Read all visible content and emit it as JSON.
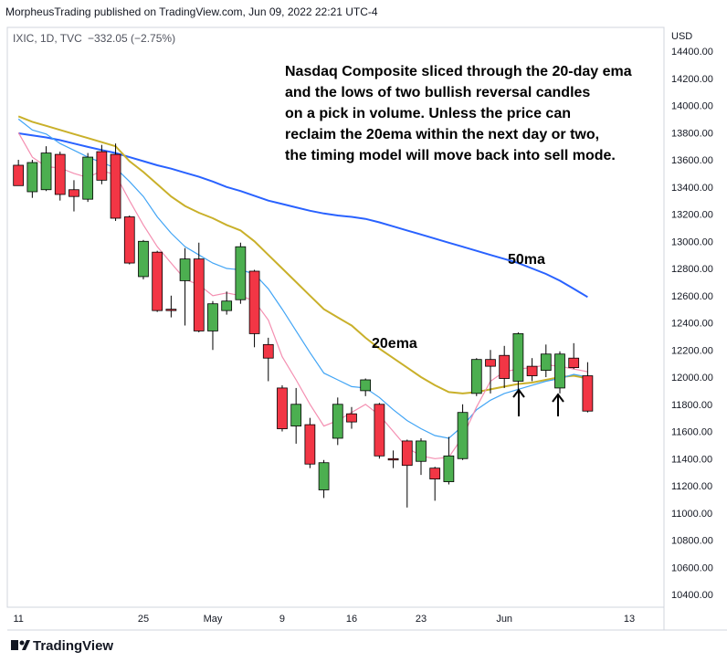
{
  "chart_data": {
    "type": "candlestick",
    "header": "MorpheusTrading published on TradingView.com, Jun 09, 2022 22:21 UTC-4",
    "symbol": "IXIC, 1D, TVC",
    "change": "−332.05 (−2.75%)",
    "currency": "USD",
    "footer": "TradingView",
    "note": [
      "Nasdaq Composite sliced through the 20-day ema",
      "and the lows of two bullish reversal candles",
      "on a pick in volume.  Unless the price can",
      "reclaim the 20ema within the next day or two,",
      "the timing model will move back into sell mode."
    ],
    "annotations": [
      "50ma",
      "20ema"
    ],
    "up_color": "#4caf50",
    "down_color": "#f23645",
    "open": [
      13560,
      13365,
      13380,
      13640,
      13380,
      13310,
      13660,
      13640,
      13180,
      12740,
      12920,
      12500,
      12710,
      12870,
      12340,
      12490,
      12570,
      12780,
      12240,
      11920,
      11640,
      11650,
      11170,
      11550,
      11730,
      11900,
      11800,
      11400,
      11530,
      11380,
      11330,
      11230,
      11400,
      11880,
      12130,
      12160,
      11970,
      12080,
      12050,
      11920,
      12140,
      12010
    ],
    "high": [
      13600,
      13600,
      13700,
      13660,
      13450,
      13650,
      13710,
      13720,
      13190,
      13010,
      12930,
      12600,
      12950,
      12990,
      12560,
      12630,
      12990,
      12790,
      12290,
      11940,
      11920,
      11700,
      11390,
      11850,
      11780,
      11990,
      11810,
      11460,
      11540,
      11550,
      11340,
      11560,
      11800,
      12140,
      12200,
      12230,
      12330,
      12140,
      12240,
      12190,
      12250,
      12110
    ],
    "low": [
      13410,
      13320,
      13370,
      13300,
      13220,
      13290,
      13420,
      13150,
      12830,
      12720,
      12480,
      12440,
      12380,
      12330,
      12200,
      12460,
      12540,
      12220,
      11970,
      11600,
      11510,
      11330,
      11110,
      11500,
      11620,
      11860,
      11400,
      11330,
      11040,
      11280,
      11090,
      11210,
      11390,
      11860,
      11880,
      11920,
      11880,
      11970,
      12000,
      11880,
      12060,
      11740
    ],
    "close": [
      13410,
      13580,
      13650,
      13345,
      13330,
      13620,
      13450,
      13170,
      12840,
      13000,
      12490,
      12490,
      12870,
      12340,
      12540,
      12560,
      12960,
      12320,
      12140,
      11620,
      11800,
      11360,
      11370,
      11800,
      11670,
      11980,
      11420,
      11390,
      11350,
      11530,
      11250,
      11420,
      11740,
      12130,
      12080,
      11990,
      12320,
      12010,
      12170,
      12170,
      12070,
      11750
    ],
    "series": [
      {
        "color": "#2962ff",
        "values": [
          13795,
          13780,
          13765,
          13745,
          13720,
          13695,
          13672,
          13650,
          13620,
          13590,
          13560,
          13535,
          13505,
          13475,
          13440,
          13400,
          13370,
          13335,
          13300,
          13275,
          13250,
          13225,
          13205,
          13190,
          13180,
          13165,
          13140,
          13110,
          13080,
          13050,
          13020,
          12990,
          12960,
          12930,
          12900,
          12870,
          12840,
          12800,
          12760,
          12710,
          12650,
          12590
        ]
      },
      {
        "color": "#c9b02a",
        "values": [
          13920,
          13880,
          13850,
          13820,
          13790,
          13760,
          13730,
          13700,
          13590,
          13510,
          13420,
          13330,
          13260,
          13210,
          13170,
          13120,
          13080,
          13000,
          12900,
          12800,
          12700,
          12600,
          12500,
          12440,
          12380,
          12290,
          12210,
          12140,
          12070,
          12000,
          11940,
          11890,
          11880,
          11890,
          11910,
          11930,
          11950,
          11960,
          11980,
          12000,
          12010,
          11990
        ]
      },
      {
        "color": "#42a5f5",
        "values": [
          13900,
          13820,
          13790,
          13720,
          13670,
          13620,
          13580,
          13540,
          13440,
          13330,
          13180,
          13060,
          12960,
          12900,
          12840,
          12800,
          12790,
          12760,
          12650,
          12500,
          12340,
          12180,
          12030,
          11980,
          11930,
          11920,
          11850,
          11760,
          11680,
          11620,
          11570,
          11550,
          11640,
          11760,
          11830,
          11880,
          11910,
          11940,
          11970,
          11990,
          12020,
          12000
        ]
      },
      {
        "color": "#f48fb1",
        "values": [
          13800,
          13620,
          13550,
          13540,
          13500,
          13470,
          13520,
          13490,
          13300,
          13120,
          12960,
          12840,
          12720,
          12680,
          12600,
          12620,
          12600,
          12560,
          12420,
          12150,
          11980,
          11800,
          11640,
          11680,
          11740,
          11800,
          11720,
          11600,
          11480,
          11420,
          11400,
          11410,
          11560,
          11780,
          11970,
          12040,
          12060,
          12070,
          12090,
          12080,
          12060,
          12040
        ]
      }
    ],
    "xlim": [
      -0.8,
      46.5
    ],
    "xticks": [
      {
        "value": 0,
        "label": "11"
      },
      {
        "value": 9,
        "label": "25"
      },
      {
        "value": 14,
        "label": "May"
      },
      {
        "value": 19,
        "label": "9"
      },
      {
        "value": 24,
        "label": "16"
      },
      {
        "value": 29,
        "label": "23"
      },
      {
        "value": 35,
        "label": "Jun"
      },
      {
        "value": 44,
        "label": "13"
      }
    ],
    "ylim": [
      10306,
      14575
    ],
    "yticks": [
      {
        "value": 10400,
        "label": "10400.00"
      },
      {
        "value": 10600,
        "label": "10600.00"
      },
      {
        "value": 10800,
        "label": "10800.00"
      },
      {
        "value": 11000,
        "label": "11000.00"
      },
      {
        "value": 11200,
        "label": "11200.00"
      },
      {
        "value": 11400,
        "label": "11400.00"
      },
      {
        "value": 11600,
        "label": "11600.00"
      },
      {
        "value": 11800,
        "label": "11800.00"
      },
      {
        "value": 12000,
        "label": "12000.00"
      },
      {
        "value": 12200,
        "label": "12200.00"
      },
      {
        "value": 12400,
        "label": "12400.00"
      },
      {
        "value": 12600,
        "label": "12600.00"
      },
      {
        "value": 12800,
        "label": "12800.00"
      },
      {
        "value": 13000,
        "label": "13000.00"
      },
      {
        "value": 13200,
        "label": "13200.00"
      },
      {
        "value": 13400,
        "label": "13400.00"
      },
      {
        "value": 13600,
        "label": "13600.00"
      },
      {
        "value": 13800,
        "label": "13800.00"
      },
      {
        "value": 14000,
        "label": "14000.00"
      },
      {
        "value": 14200,
        "label": "14200.00"
      },
      {
        "value": 14400,
        "label": "14400.00"
      }
    ],
    "grid": false
  }
}
